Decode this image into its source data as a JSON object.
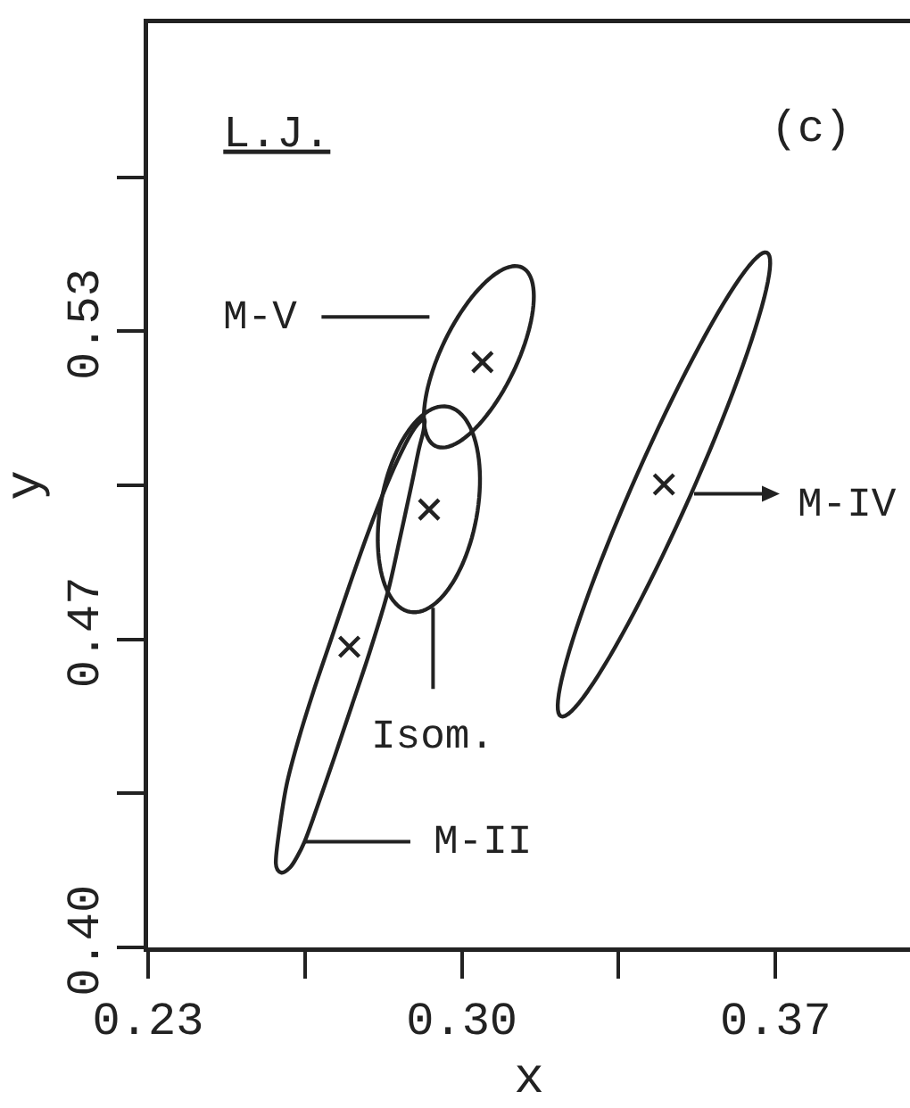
{
  "chart_data": {
    "type": "scatter",
    "title": "L.J.",
    "xlabel": "x",
    "ylabel": "y",
    "xlim": [
      0.23,
      0.4
    ],
    "xticks": [
      0.23,
      {
        "value": 0.265,
        "label": null
      },
      {
        "value": 0.3,
        "label": "0.30"
      },
      {
        "value": 0.335,
        "label": null
      },
      0.37
    ],
    "ylim": [
      0.395,
      0.605
    ],
    "yticks": [
      {
        "value": 0.395,
        "label": "0.40"
      },
      {
        "value": 0.43,
        "label": null
      },
      {
        "value": 0.465,
        "label": "0.47"
      },
      {
        "value": 0.5,
        "label": null
      },
      {
        "value": 0.535,
        "label": "0.53"
      },
      {
        "value": 0.57,
        "label": null
      }
    ],
    "marker": "cross",
    "series": [
      {
        "color": "#222222",
        "x": [
          0.2749,
          0.2927,
          0.3046,
          0.3451
        ],
        "values": [
          0.4633,
          0.4945,
          0.528,
          0.5002
        ]
      }
    ],
    "annotations": [
      "(c)",
      "M-V",
      "M-IV",
      "Isom.",
      "M-II"
    ]
  }
}
